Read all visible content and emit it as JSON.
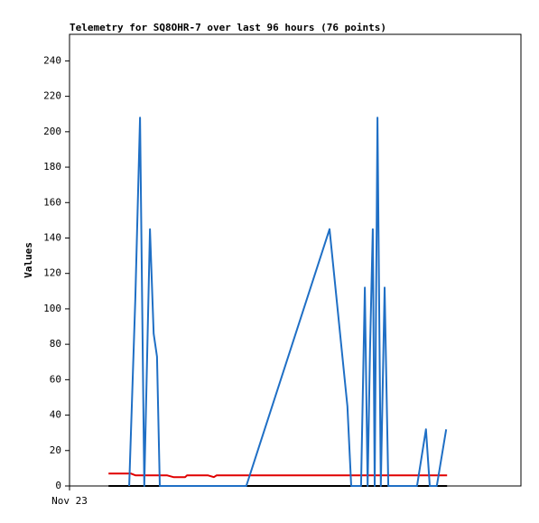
{
  "chart_data": {
    "type": "line",
    "title": "Telemetry for SQ8OHR-7 over last 96 hours (76 points)",
    "y_label": "Values",
    "xlim": [
      0,
      96
    ],
    "xticks": [
      {
        "value": 0,
        "label": "Nov 23"
      }
    ],
    "ylim": [
      0,
      255
    ],
    "yticks": [
      0,
      20,
      40,
      60,
      80,
      100,
      120,
      140,
      160,
      180,
      200,
      220,
      240
    ],
    "series": [
      {
        "color": "#000000",
        "x": [
          8.3,
          80.3
        ],
        "values": [
          0,
          0
        ]
      },
      {
        "color": "#e00000",
        "x": [
          8.3,
          13.1,
          14.0,
          20.7,
          22.1,
          24.6,
          25.0,
          29.4,
          30.7,
          31.3,
          80.3
        ],
        "values": [
          7,
          7,
          6,
          6,
          5,
          5,
          6,
          6,
          5,
          6,
          6
        ]
      },
      {
        "color": "#1f6fc5",
        "x": [
          12.7,
          14.0,
          15.0,
          15.9,
          17.1,
          17.9,
          18.6,
          19.2,
          37.6,
          55.3,
          59.1,
          59.9,
          62.0,
          62.8,
          63.4,
          63.9,
          64.5,
          64.9,
          65.5,
          66.2,
          67.0,
          67.8,
          73.9,
          75.8,
          76.6,
          78.1,
          80.1
        ],
        "values": [
          0,
          106,
          208,
          0,
          145,
          86,
          73,
          0,
          0,
          145,
          45,
          0,
          0,
          112,
          0,
          76,
          145,
          0,
          208,
          0,
          112,
          0,
          0,
          32,
          0,
          0,
          32
        ]
      }
    ]
  }
}
